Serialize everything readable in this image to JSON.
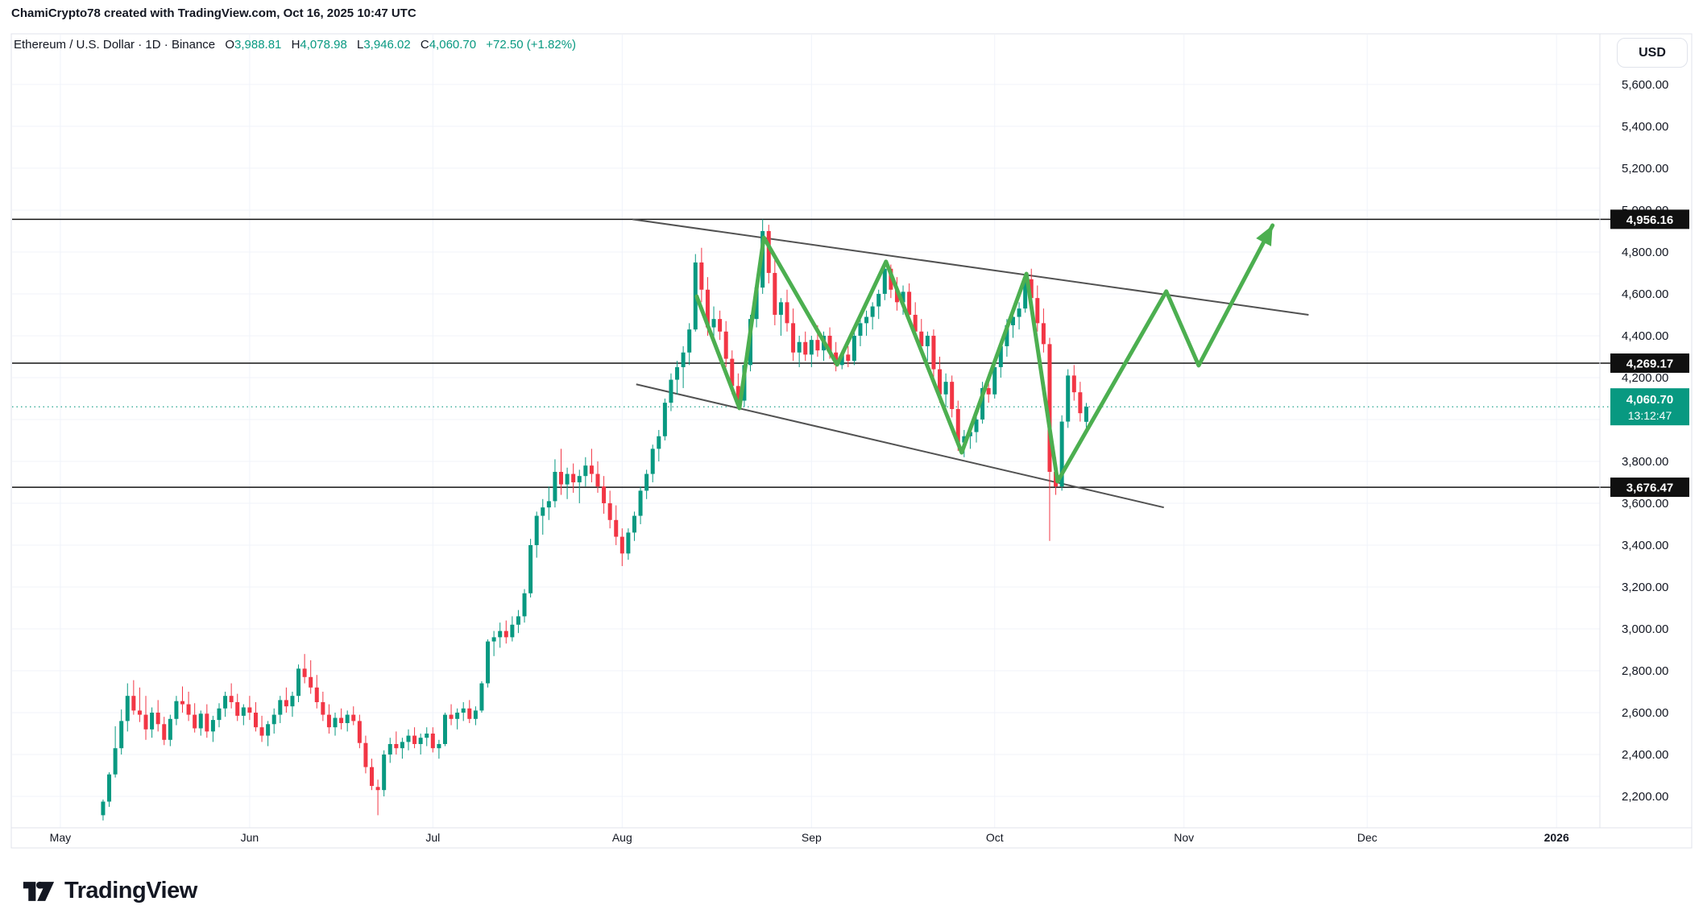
{
  "attribution": "ChamiCrypto78 created with TradingView.com, Oct 16, 2025 10:47 UTC",
  "header": {
    "symbol": "Ethereum / U.S. Dollar",
    "separator": "·",
    "interval": "1D",
    "exchange": "Binance",
    "o_label": "O",
    "o_value": "3,988.81",
    "h_label": "H",
    "h_value": "4,078.98",
    "l_label": "L",
    "l_value": "3,946.02",
    "c_label": "C",
    "c_value": "4,060.70",
    "change": "+72.50 (+1.82%)"
  },
  "axis": {
    "currency": "USD"
  },
  "logo_text": "TradingView",
  "colors": {
    "up": "#089981",
    "down": "#f23645",
    "drawing_green": "#4caf50",
    "trendline": "#525252",
    "level_line": "#131313",
    "grid": "#f0f3fa",
    "text": "#131722",
    "border": "#e0e3eb",
    "label_box_dark": "#101010",
    "label_box_current": "#089981"
  },
  "chart_data": {
    "type": "candlestick",
    "title": "Ethereum / U.S. Dollar, 1D, Binance",
    "x_axis": {
      "unit": "days since 2025-05-01",
      "range": [
        -7.9,
        252.1
      ]
    },
    "ylim": [
      2050,
      5842
    ],
    "price_ticks": {
      "min": 2200,
      "max": 5600,
      "step": 200
    },
    "time_ticks": [
      {
        "label": "May",
        "day": 0
      },
      {
        "label": "Jun",
        "day": 31
      },
      {
        "label": "Jul",
        "day": 61
      },
      {
        "label": "Aug",
        "day": 92
      },
      {
        "label": "Sep",
        "day": 123
      },
      {
        "label": "Oct",
        "day": 153
      },
      {
        "label": "Nov",
        "day": 184
      },
      {
        "label": "Dec",
        "day": 214
      },
      {
        "label": "2026",
        "day": 245,
        "bold": true
      }
    ],
    "candles_start_day": 7,
    "candles_start_date": "2025-05-08",
    "candles_ohlc": [
      [
        2110,
        2185,
        2085,
        2175
      ],
      [
        2175,
        2315,
        2150,
        2305
      ],
      [
        2305,
        2535,
        2290,
        2430
      ],
      [
        2430,
        2615,
        2400,
        2560
      ],
      [
        2560,
        2740,
        2510,
        2680
      ],
      [
        2680,
        2755,
        2590,
        2610
      ],
      [
        2610,
        2720,
        2555,
        2590
      ],
      [
        2590,
        2680,
        2470,
        2520
      ],
      [
        2520,
        2625,
        2480,
        2600
      ],
      [
        2600,
        2660,
        2510,
        2545
      ],
      [
        2545,
        2580,
        2445,
        2470
      ],
      [
        2470,
        2590,
        2440,
        2570
      ],
      [
        2570,
        2680,
        2540,
        2655
      ],
      [
        2655,
        2725,
        2600,
        2640
      ],
      [
        2640,
        2700,
        2560,
        2590
      ],
      [
        2590,
        2645,
        2505,
        2525
      ],
      [
        2525,
        2610,
        2490,
        2595
      ],
      [
        2595,
        2640,
        2480,
        2510
      ],
      [
        2510,
        2585,
        2460,
        2565
      ],
      [
        2565,
        2645,
        2530,
        2620
      ],
      [
        2620,
        2700,
        2580,
        2680
      ],
      [
        2680,
        2740,
        2620,
        2650
      ],
      [
        2650,
        2690,
        2560,
        2585
      ],
      [
        2585,
        2640,
        2540,
        2625
      ],
      [
        2625,
        2680,
        2565,
        2600
      ],
      [
        2600,
        2650,
        2510,
        2530
      ],
      [
        2530,
        2585,
        2460,
        2490
      ],
      [
        2490,
        2560,
        2440,
        2545
      ],
      [
        2545,
        2620,
        2500,
        2590
      ],
      [
        2590,
        2680,
        2550,
        2660
      ],
      [
        2660,
        2720,
        2600,
        2630
      ],
      [
        2630,
        2700,
        2580,
        2680
      ],
      [
        2680,
        2830,
        2650,
        2810
      ],
      [
        2810,
        2880,
        2740,
        2770
      ],
      [
        2770,
        2850,
        2690,
        2720
      ],
      [
        2720,
        2780,
        2620,
        2650
      ],
      [
        2650,
        2700,
        2560,
        2590
      ],
      [
        2590,
        2640,
        2500,
        2530
      ],
      [
        2530,
        2600,
        2490,
        2575
      ],
      [
        2575,
        2620,
        2520,
        2550
      ],
      [
        2550,
        2610,
        2510,
        2590
      ],
      [
        2590,
        2630,
        2540,
        2560
      ],
      [
        2560,
        2590,
        2430,
        2455
      ],
      [
        2455,
        2490,
        2310,
        2340
      ],
      [
        2340,
        2380,
        2230,
        2250
      ],
      [
        2245,
        2280,
        2110,
        2230
      ],
      [
        2230,
        2420,
        2200,
        2400
      ],
      [
        2400,
        2480,
        2360,
        2450
      ],
      [
        2450,
        2510,
        2400,
        2430
      ],
      [
        2430,
        2480,
        2380,
        2460
      ],
      [
        2460,
        2520,
        2420,
        2490
      ],
      [
        2490,
        2530,
        2430,
        2450
      ],
      [
        2450,
        2500,
        2400,
        2480
      ],
      [
        2480,
        2530,
        2440,
        2500
      ],
      [
        2500,
        2530,
        2410,
        2430
      ],
      [
        2430,
        2470,
        2380,
        2450
      ],
      [
        2450,
        2600,
        2440,
        2590
      ],
      [
        2590,
        2640,
        2540,
        2570
      ],
      [
        2570,
        2620,
        2520,
        2600
      ],
      [
        2600,
        2650,
        2560,
        2620
      ],
      [
        2620,
        2660,
        2550,
        2570
      ],
      [
        2570,
        2630,
        2540,
        2610
      ],
      [
        2610,
        2750,
        2600,
        2740
      ],
      [
        2740,
        2950,
        2720,
        2940
      ],
      [
        2940,
        2990,
        2870,
        2960
      ],
      [
        2960,
        3030,
        2910,
        2990
      ],
      [
        2990,
        3040,
        2930,
        2960
      ],
      [
        2960,
        3060,
        2940,
        3020
      ],
      [
        3020,
        3090,
        2980,
        3060
      ],
      [
        3060,
        3190,
        3030,
        3170
      ],
      [
        3170,
        3430,
        3150,
        3400
      ],
      [
        3400,
        3560,
        3340,
        3540
      ],
      [
        3540,
        3620,
        3450,
        3580
      ],
      [
        3580,
        3680,
        3520,
        3610
      ],
      [
        3610,
        3810,
        3580,
        3750
      ],
      [
        3750,
        3860,
        3640,
        3690
      ],
      [
        3690,
        3770,
        3620,
        3740
      ],
      [
        3740,
        3790,
        3650,
        3700
      ],
      [
        3700,
        3760,
        3600,
        3730
      ],
      [
        3730,
        3820,
        3680,
        3780
      ],
      [
        3780,
        3860,
        3700,
        3740
      ],
      [
        3740,
        3800,
        3650,
        3680
      ],
      [
        3680,
        3730,
        3550,
        3600
      ],
      [
        3600,
        3660,
        3480,
        3520
      ],
      [
        3520,
        3590,
        3400,
        3440
      ],
      [
        3440,
        3480,
        3300,
        3360
      ],
      [
        3360,
        3480,
        3330,
        3460
      ],
      [
        3460,
        3560,
        3420,
        3540
      ],
      [
        3540,
        3680,
        3500,
        3660
      ],
      [
        3660,
        3760,
        3620,
        3740
      ],
      [
        3740,
        3880,
        3700,
        3860
      ],
      [
        3860,
        3950,
        3800,
        3920
      ],
      [
        3920,
        4100,
        3900,
        4080
      ],
      [
        4080,
        4220,
        4040,
        4190
      ],
      [
        4190,
        4280,
        4120,
        4250
      ],
      [
        4250,
        4350,
        4150,
        4320
      ],
      [
        4320,
        4460,
        4260,
        4430
      ],
      [
        4430,
        4790,
        4420,
        4750
      ],
      [
        4750,
        4820,
        4560,
        4620
      ],
      [
        4620,
        4680,
        4400,
        4440
      ],
      [
        4440,
        4540,
        4380,
        4480
      ],
      [
        4480,
        4520,
        4380,
        4420
      ],
      [
        4420,
        4470,
        4250,
        4290
      ],
      [
        4290,
        4330,
        4120,
        4160
      ],
      [
        4160,
        4220,
        4050,
        4090
      ],
      [
        4090,
        4280,
        4060,
        4260
      ],
      [
        4260,
        4500,
        4230,
        4480
      ],
      [
        4480,
        4660,
        4440,
        4630
      ],
      [
        4630,
        4956,
        4600,
        4900
      ],
      [
        4900,
        4930,
        4650,
        4700
      ],
      [
        4700,
        4780,
        4450,
        4500
      ],
      [
        4500,
        4580,
        4400,
        4560
      ],
      [
        4560,
        4620,
        4420,
        4460
      ],
      [
        4460,
        4530,
        4280,
        4320
      ],
      [
        4320,
        4400,
        4250,
        4370
      ],
      [
        4370,
        4420,
        4280,
        4310
      ],
      [
        4310,
        4400,
        4250,
        4380
      ],
      [
        4380,
        4450,
        4300,
        4330
      ],
      [
        4330,
        4420,
        4280,
        4400
      ],
      [
        4400,
        4440,
        4290,
        4320
      ],
      [
        4320,
        4370,
        4230,
        4260
      ],
      [
        4260,
        4330,
        4240,
        4310
      ],
      [
        4310,
        4350,
        4250,
        4280
      ],
      [
        4280,
        4420,
        4260,
        4400
      ],
      [
        4400,
        4480,
        4350,
        4460
      ],
      [
        4460,
        4520,
        4400,
        4490
      ],
      [
        4490,
        4560,
        4430,
        4540
      ],
      [
        4540,
        4620,
        4480,
        4600
      ],
      [
        4600,
        4760,
        4570,
        4720
      ],
      [
        4720,
        4740,
        4580,
        4620
      ],
      [
        4620,
        4680,
        4520,
        4560
      ],
      [
        4560,
        4640,
        4500,
        4610
      ],
      [
        4610,
        4650,
        4460,
        4500
      ],
      [
        4500,
        4560,
        4380,
        4420
      ],
      [
        4420,
        4480,
        4320,
        4350
      ],
      [
        4350,
        4420,
        4280,
        4400
      ],
      [
        4400,
        4430,
        4200,
        4240
      ],
      [
        4240,
        4300,
        4080,
        4120
      ],
      [
        4120,
        4220,
        4060,
        4180
      ],
      [
        4180,
        4210,
        4010,
        4050
      ],
      [
        4050,
        4090,
        3850,
        3890
      ],
      [
        3890,
        3950,
        3820,
        3920
      ],
      [
        3920,
        3980,
        3860,
        3940
      ],
      [
        3940,
        4020,
        3890,
        4000
      ],
      [
        4000,
        4180,
        3980,
        4150
      ],
      [
        4150,
        4220,
        4080,
        4120
      ],
      [
        4120,
        4280,
        4100,
        4250
      ],
      [
        4250,
        4380,
        4200,
        4350
      ],
      [
        4350,
        4480,
        4300,
        4450
      ],
      [
        4450,
        4520,
        4390,
        4490
      ],
      [
        4490,
        4560,
        4430,
        4530
      ],
      [
        4530,
        4700,
        4510,
        4670
      ],
      [
        4670,
        4720,
        4540,
        4580
      ],
      [
        4580,
        4640,
        4420,
        4460
      ],
      [
        4460,
        4530,
        4320,
        4360
      ],
      [
        4360,
        4390,
        3420,
        3750
      ],
      [
        3750,
        3820,
        3640,
        3680
      ],
      [
        3680,
        4020,
        3660,
        3990
      ],
      [
        3990,
        4240,
        3960,
        4210
      ],
      [
        4210,
        4260,
        4090,
        4130
      ],
      [
        4130,
        4180,
        3990,
        4030
      ],
      [
        3989,
        4079,
        3946,
        4061
      ]
    ],
    "levels": [
      {
        "price": 4956.16,
        "label": "4,956.16"
      },
      {
        "price": 4269.17,
        "label": "4,269.17"
      },
      {
        "price": 3676.47,
        "label": "3,676.47"
      }
    ],
    "current_price": {
      "price": 4060.7,
      "label": "4,060.70",
      "countdown": "13:12:47"
    },
    "trendlines": [
      {
        "name": "upper-wedge-line",
        "points": [
          {
            "day": 93.7,
            "price": 4956
          },
          {
            "day": 204.4,
            "price": 4500
          }
        ]
      },
      {
        "name": "lower-wedge-line",
        "points": [
          {
            "day": 94.3,
            "price": 4168
          },
          {
            "day": 180.7,
            "price": 3580
          }
        ]
      }
    ],
    "projection_zigzag": {
      "name": "projected-path-arrow",
      "points": [
        {
          "day": 104.2,
          "price": 4588
        },
        {
          "day": 111.2,
          "price": 4054
        },
        {
          "day": 115.2,
          "price": 4869
        },
        {
          "day": 127.2,
          "price": 4262
        },
        {
          "day": 135.2,
          "price": 4754
        },
        {
          "day": 147.6,
          "price": 3842
        },
        {
          "day": 158.2,
          "price": 4696
        },
        {
          "day": 163.3,
          "price": 3704
        },
        {
          "day": 181.1,
          "price": 4612
        },
        {
          "day": 186.4,
          "price": 4258
        },
        {
          "day": 198.5,
          "price": 4927
        }
      ],
      "arrow_at_end": true
    },
    "legend_position": "none",
    "grid": true
  }
}
